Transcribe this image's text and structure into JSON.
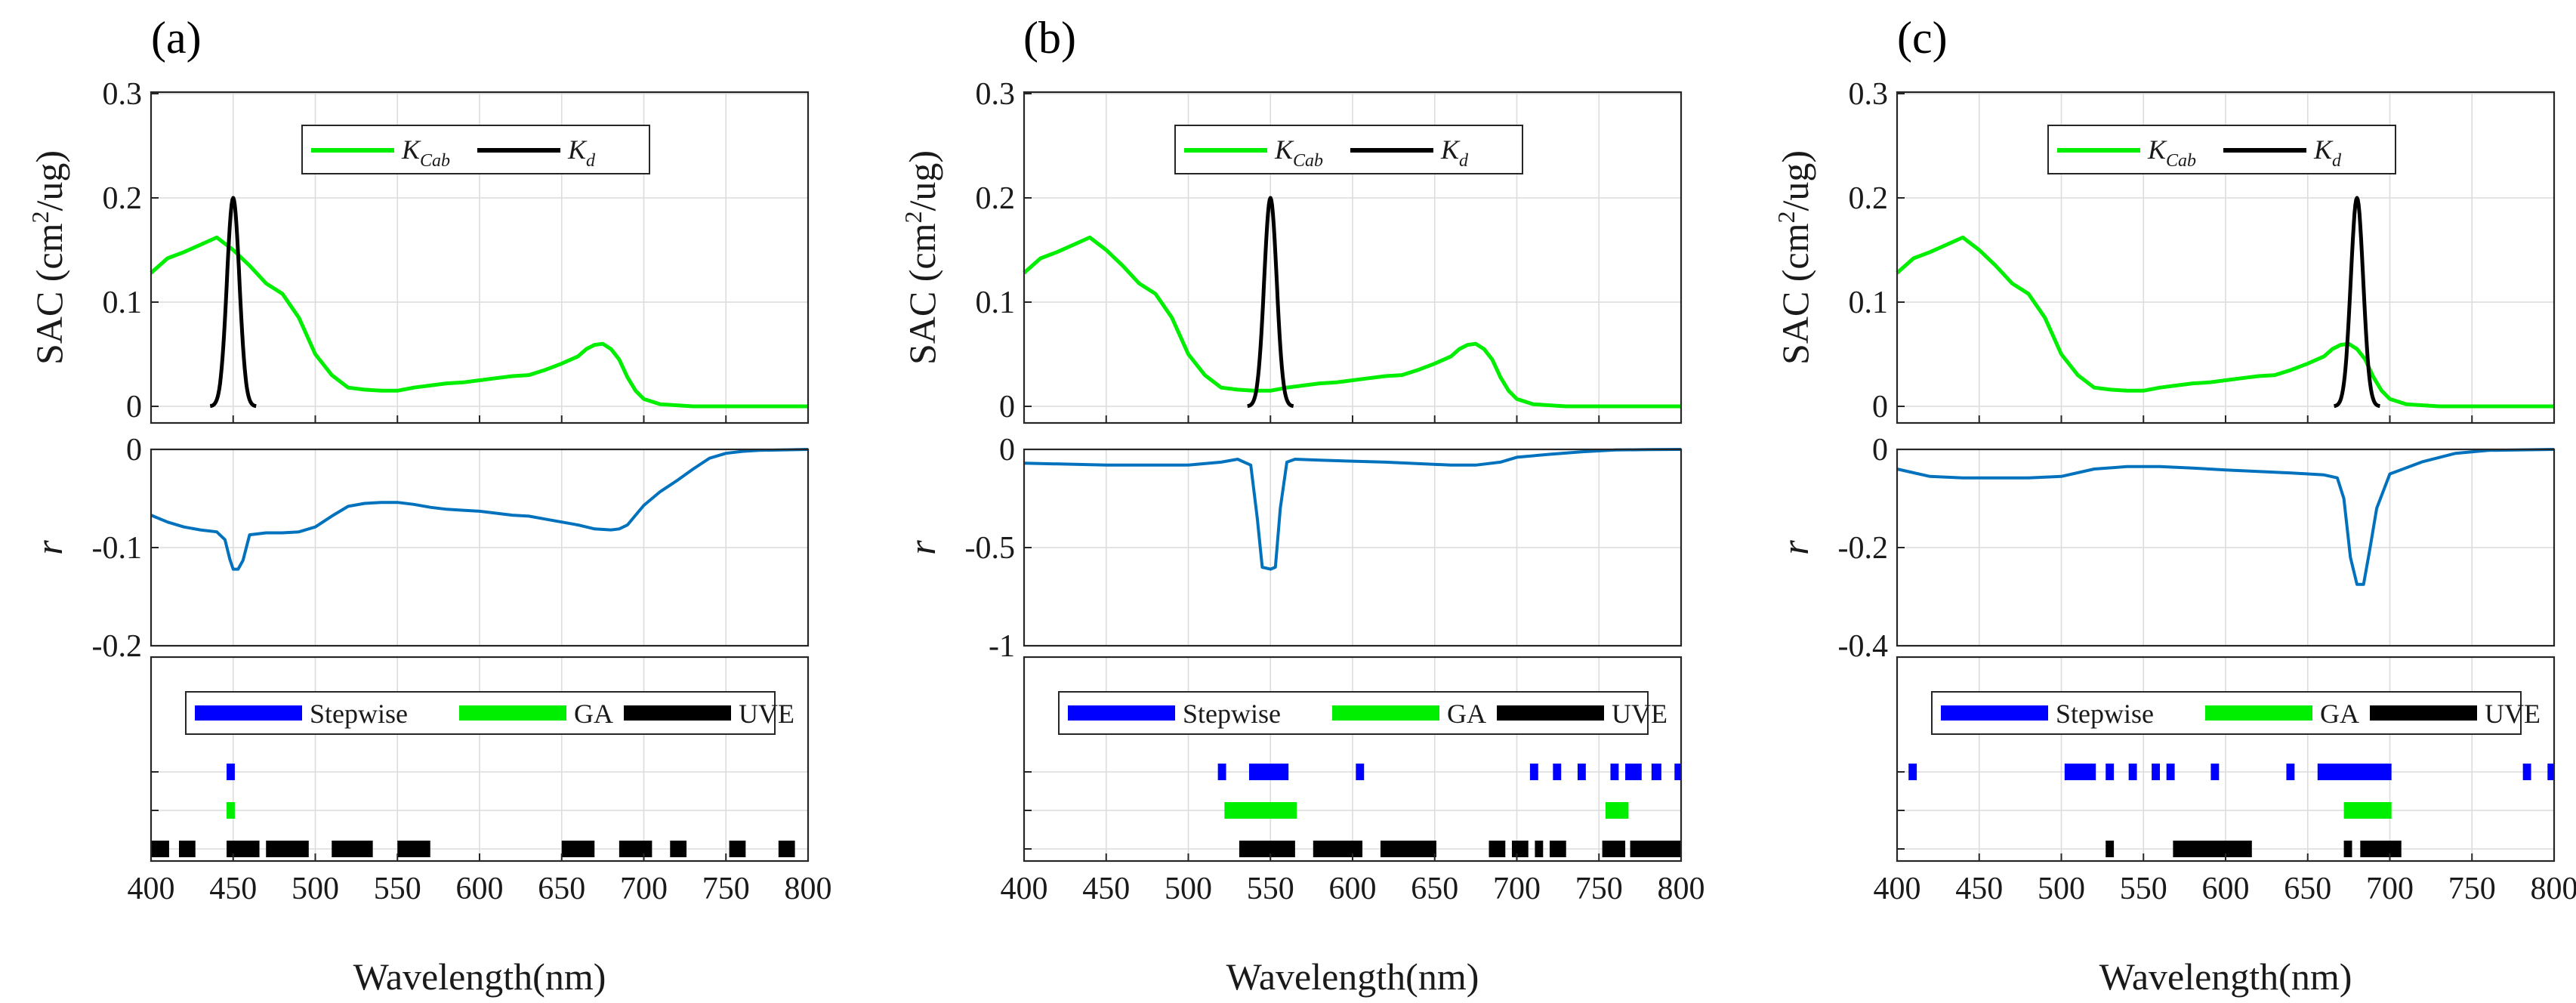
{
  "figure": {
    "colors": {
      "kcab": "#00ee00",
      "kd": "#000000",
      "r": "#0072bd",
      "stepwise": "#0000ff",
      "ga": "#00ee00",
      "uve": "#000000"
    },
    "xlabel": "Wavelength(nm)",
    "x_ticks": [
      "400",
      "450",
      "500",
      "550",
      "600",
      "650",
      "700",
      "750",
      "800"
    ],
    "sac_ylabel": "SAC (cm",
    "sac_ylabel_sup": "2",
    "sac_ylabel_tail": "/ug)",
    "sac_ticks": [
      "0",
      "0.1",
      "0.2",
      "0.3"
    ],
    "r_label": "r",
    "legend_top": {
      "kcab": "K",
      "kcab_sub": "Cab",
      "kd": "K",
      "kd_sub": "d"
    },
    "legend_bottom": {
      "stepwise": "Stepwise",
      "ga": "GA",
      "uve": "UVE"
    }
  },
  "chart_data": [
    {
      "panel": "(a)",
      "type": "line",
      "x_range": [
        400,
        800
      ],
      "sac": {
        "ylim": [
          0,
          0.3
        ],
        "series": [
          {
            "name": "K_Cab",
            "x": [
              400,
              410,
              420,
              430,
              440,
              450,
              460,
              470,
              480,
              490,
              500,
              510,
              520,
              530,
              540,
              550,
              560,
              570,
              580,
              590,
              600,
              610,
              620,
              630,
              640,
              650,
              660,
              665,
              670,
              675,
              680,
              685,
              690,
              695,
              700,
              710,
              720,
              730,
              740,
              750,
              800
            ],
            "y": [
              0.128,
              0.142,
              0.148,
              0.155,
              0.162,
              0.15,
              0.135,
              0.118,
              0.108,
              0.085,
              0.05,
              0.03,
              0.018,
              0.016,
              0.015,
              0.015,
              0.018,
              0.02,
              0.022,
              0.023,
              0.025,
              0.027,
              0.029,
              0.03,
              0.035,
              0.041,
              0.048,
              0.055,
              0.059,
              0.06,
              0.055,
              0.045,
              0.028,
              0.015,
              0.007,
              0.002,
              0.001,
              0,
              0,
              0,
              0
            ]
          },
          {
            "name": "K_d",
            "center": 450,
            "sigma": 3.8,
            "peak": 0.2,
            "span": 14
          }
        ]
      },
      "r": {
        "ylim": [
          -0.2,
          0
        ],
        "ticks": [
          "-0.2",
          "-0.1",
          "0"
        ],
        "x": [
          400,
          410,
          420,
          430,
          440,
          445,
          448,
          450,
          453,
          456,
          460,
          470,
          480,
          490,
          500,
          510,
          520,
          530,
          540,
          550,
          560,
          570,
          580,
          590,
          600,
          610,
          620,
          630,
          640,
          650,
          660,
          670,
          680,
          685,
          690,
          695,
          700,
          710,
          720,
          730,
          740,
          750,
          760,
          770,
          800
        ],
        "y": [
          -0.067,
          -0.074,
          -0.079,
          -0.082,
          -0.084,
          -0.092,
          -0.112,
          -0.122,
          -0.122,
          -0.113,
          -0.087,
          -0.085,
          -0.085,
          -0.084,
          -0.079,
          -0.068,
          -0.058,
          -0.055,
          -0.054,
          -0.054,
          -0.056,
          -0.059,
          -0.061,
          -0.062,
          -0.063,
          -0.065,
          -0.067,
          -0.068,
          -0.071,
          -0.074,
          -0.077,
          -0.081,
          -0.082,
          -0.081,
          -0.077,
          -0.067,
          -0.057,
          -0.043,
          -0.032,
          -0.02,
          -0.009,
          -0.004,
          -0.002,
          -0.001,
          0
        ]
      },
      "selection": {
        "stepwise": [
          [
            446,
            451
          ]
        ],
        "ga": [
          [
            446,
            451
          ]
        ],
        "uve": [
          [
            400,
            411
          ],
          [
            417,
            427
          ],
          [
            446,
            466
          ],
          [
            470,
            496
          ],
          [
            510,
            535
          ],
          [
            550,
            570
          ],
          [
            650,
            670
          ],
          [
            685,
            705
          ],
          [
            716,
            726
          ],
          [
            752,
            762
          ],
          [
            782,
            792
          ]
        ]
      }
    },
    {
      "panel": "(b)",
      "type": "line",
      "x_range": [
        400,
        800
      ],
      "sac": {
        "ylim": [
          0,
          0.3
        ],
        "series": [
          {
            "name": "K_Cab",
            "x": [
              400,
              410,
              420,
              430,
              440,
              450,
              460,
              470,
              480,
              490,
              500,
              510,
              520,
              530,
              540,
              550,
              560,
              570,
              580,
              590,
              600,
              610,
              620,
              630,
              640,
              650,
              660,
              665,
              670,
              675,
              680,
              685,
              690,
              695,
              700,
              710,
              720,
              730,
              740,
              750,
              800
            ],
            "y": [
              0.128,
              0.142,
              0.148,
              0.155,
              0.162,
              0.15,
              0.135,
              0.118,
              0.108,
              0.085,
              0.05,
              0.03,
              0.018,
              0.016,
              0.015,
              0.015,
              0.018,
              0.02,
              0.022,
              0.023,
              0.025,
              0.027,
              0.029,
              0.03,
              0.035,
              0.041,
              0.048,
              0.055,
              0.059,
              0.06,
              0.055,
              0.045,
              0.028,
              0.015,
              0.007,
              0.002,
              0.001,
              0,
              0,
              0,
              0
            ]
          },
          {
            "name": "K_d",
            "center": 550,
            "sigma": 3.8,
            "peak": 0.2,
            "span": 14
          }
        ]
      },
      "r": {
        "ylim": [
          -1,
          0
        ],
        "ticks": [
          "-1",
          "-0.5",
          "0"
        ],
        "x": [
          400,
          450,
          500,
          520,
          530,
          538,
          542,
          545,
          550,
          553,
          556,
          560,
          565,
          580,
          620,
          660,
          675,
          690,
          700,
          720,
          740,
          760,
          780,
          800
        ],
        "y": [
          -0.07,
          -0.08,
          -0.08,
          -0.065,
          -0.05,
          -0.08,
          -0.35,
          -0.6,
          -0.61,
          -0.6,
          -0.3,
          -0.065,
          -0.05,
          -0.055,
          -0.065,
          -0.08,
          -0.08,
          -0.065,
          -0.04,
          -0.025,
          -0.012,
          -0.003,
          -0.001,
          0
        ]
      },
      "selection": {
        "stepwise": [
          [
            518,
            523
          ],
          [
            537,
            561
          ],
          [
            602,
            607
          ],
          [
            708,
            713
          ],
          [
            722,
            727
          ],
          [
            737,
            742
          ],
          [
            757,
            762
          ],
          [
            766,
            776
          ],
          [
            782,
            788
          ],
          [
            796,
            800
          ]
        ],
        "ga": [
          [
            522,
            566
          ],
          [
            754,
            768
          ]
        ],
        "uve": [
          [
            531,
            565
          ],
          [
            576,
            606
          ],
          [
            617,
            651
          ],
          [
            683,
            693
          ],
          [
            697,
            707
          ],
          [
            711,
            716
          ],
          [
            720,
            730
          ],
          [
            752,
            766
          ],
          [
            769,
            800
          ]
        ]
      }
    },
    {
      "panel": "(c)",
      "type": "line",
      "x_range": [
        400,
        800
      ],
      "sac": {
        "ylim": [
          0,
          0.3
        ],
        "series": [
          {
            "name": "K_Cab",
            "x": [
              400,
              410,
              420,
              430,
              440,
              450,
              460,
              470,
              480,
              490,
              500,
              510,
              520,
              530,
              540,
              550,
              560,
              570,
              580,
              590,
              600,
              610,
              620,
              630,
              640,
              650,
              660,
              665,
              670,
              675,
              680,
              685,
              690,
              695,
              700,
              710,
              720,
              730,
              740,
              750,
              800
            ],
            "y": [
              0.128,
              0.142,
              0.148,
              0.155,
              0.162,
              0.15,
              0.135,
              0.118,
              0.108,
              0.085,
              0.05,
              0.03,
              0.018,
              0.016,
              0.015,
              0.015,
              0.018,
              0.02,
              0.022,
              0.023,
              0.025,
              0.027,
              0.029,
              0.03,
              0.035,
              0.041,
              0.048,
              0.055,
              0.059,
              0.06,
              0.055,
              0.045,
              0.028,
              0.015,
              0.007,
              0.002,
              0.001,
              0,
              0,
              0,
              0
            ]
          },
          {
            "name": "K_d",
            "center": 680,
            "sigma": 3.8,
            "peak": 0.2,
            "span": 14
          }
        ]
      },
      "r": {
        "ylim": [
          -0.4,
          0
        ],
        "ticks": [
          "-0.4",
          "-0.2",
          "0"
        ],
        "x": [
          400,
          420,
          440,
          460,
          480,
          500,
          520,
          540,
          560,
          580,
          600,
          620,
          640,
          660,
          668,
          672,
          676,
          680,
          684,
          688,
          692,
          700,
          720,
          740,
          760,
          800
        ],
        "y": [
          -0.04,
          -0.055,
          -0.058,
          -0.058,
          -0.058,
          -0.055,
          -0.04,
          -0.035,
          -0.035,
          -0.038,
          -0.042,
          -0.045,
          -0.048,
          -0.052,
          -0.058,
          -0.1,
          -0.22,
          -0.275,
          -0.275,
          -0.2,
          -0.12,
          -0.05,
          -0.025,
          -0.008,
          -0.002,
          0
        ]
      },
      "selection": {
        "stepwise": [
          [
            407,
            412
          ],
          [
            502,
            521
          ],
          [
            527,
            532
          ],
          [
            541,
            546
          ],
          [
            555,
            560
          ],
          [
            564,
            569
          ],
          [
            591,
            596
          ],
          [
            637,
            642
          ],
          [
            656,
            701
          ],
          [
            781,
            786
          ],
          [
            796,
            800
          ]
        ],
        "ga": [
          [
            672,
            701
          ]
        ],
        "uve": [
          [
            527,
            532
          ],
          [
            568,
            616
          ],
          [
            672,
            677
          ],
          [
            682,
            707
          ]
        ]
      }
    }
  ]
}
